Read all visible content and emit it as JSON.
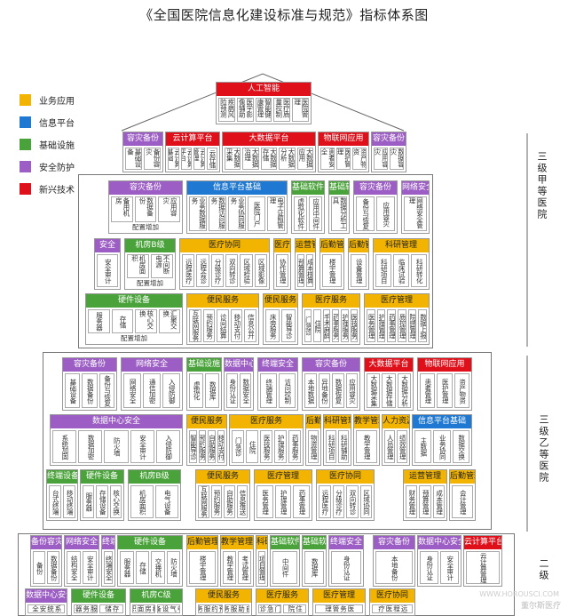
{
  "title": "《全国医院信息化建设标准与规范》指标体系图",
  "legend": [
    {
      "label": "业务应用",
      "color": "#f2b400"
    },
    {
      "label": "信息平台",
      "color": "#1f78d1"
    },
    {
      "label": "基础设施",
      "color": "#4aa33a"
    },
    {
      "label": "安全防护",
      "color": "#9c5ec4"
    },
    {
      "label": "新兴技术",
      "color": "#e0101b"
    }
  ],
  "tiers": {
    "top": "三级甲等医院",
    "mid": "三级乙等医院",
    "low": "二级"
  },
  "top": {
    "ai": {
      "header": "人工智能",
      "cells": [
        "疾病风险预测",
        "医学影像辅助",
        "智能健康管理",
        "医疗质量控制",
        "医院管理"
      ]
    },
    "row2": [
      {
        "header": "容灾备份",
        "cells": [
          "基础设备",
          "备份容灾"
        ]
      },
      {
        "header": "云计算平台",
        "cells": [
          "云计算基础",
          "云计算平台",
          "云计算管理",
          "云存储"
        ]
      },
      {
        "header": "大数据平台",
        "cells": [
          "大数据采集",
          "大数据治理",
          "大数据存储",
          "大数据分析",
          "大数据应用"
        ]
      },
      {
        "header": "物联网应用",
        "cells": [
          "患者安全",
          "医护管理",
          "资产物资"
        ]
      },
      {
        "header": "容灾备份",
        "cells": [
          "应用容灾",
          "数据容灾"
        ]
      }
    ]
  },
  "a": {
    "blocks": [
      {
        "header": "容灾备份",
        "cells": [
          "备用机房",
          "数据备份",
          "应用容灾"
        ],
        "note": "配置增加"
      },
      {
        "header": "信息平台基础",
        "cells": [
          "业务数据服务",
          "数据访问服务",
          "业务协同服务",
          "医院门户",
          "电子证照管理"
        ]
      },
      {
        "header": "基础软件",
        "cells": [
          "虚拟化软件",
          "应用中间件"
        ]
      },
      {
        "header": "基础软件",
        "cells": [
          "数据分析工具"
        ]
      },
      {
        "header": "容灾备份",
        "cells": [
          "备份与恢复",
          "应用容灾"
        ]
      },
      {
        "header": "网络安全",
        "cells": [
          "网络安全管理"
        ]
      },
      {
        "header": "安全",
        "cells": [
          "安全审计"
        ]
      },
      {
        "header": "机房B级",
        "cells": [
          "机房面积",
          "不间断电源"
        ],
        "note": "配置增加"
      },
      {
        "header": "医疗协同",
        "cells": [
          "远程医疗",
          "远程会诊",
          "分级诊疗",
          "双向转诊",
          "区域检验",
          "区域影像"
        ]
      },
      {
        "header": "医疗协同",
        "cells": [
          "协作管理"
        ]
      },
      {
        "header": "运营管理",
        "cells": [
          "预算管理",
          "成本核算"
        ]
      },
      {
        "header": "后勤管理",
        "cells": [
          "楼宇管理"
        ]
      },
      {
        "header": "后勤管理",
        "cells": [
          "设备管理"
        ]
      },
      {
        "header": "科研管理",
        "cells": [
          "科研项目",
          "临床试验",
          "科研转化"
        ]
      },
      {
        "header": "硬件设备",
        "cells": [
          "服务器",
          "存储",
          "核心交换",
          "汇聚交换"
        ],
        "note": "配置增加"
      },
      {
        "header": "便民服务",
        "cells": [
          "互联网服务",
          "预约服务",
          "诊间结算",
          "移动支付",
          "信息公开"
        ]
      },
      {
        "header": "便民服务",
        "cells": [
          "床旁服务",
          "智能导诊"
        ]
      },
      {
        "header": "医疗服务",
        "cells": [
          "门急诊",
          "住院",
          "手术麻醉",
          "药事服务",
          "护理服务",
          "医技服务"
        ]
      },
      {
        "header": "医疗管理",
        "cells": [
          "医务管理",
          "护理管理",
          "药事管理",
          "质控管理",
          "院感管理",
          "数据上报"
        ]
      }
    ]
  },
  "b": {
    "blocks": [
      {
        "header": "容灾备份",
        "cells": [
          "基础设备",
          "数据备份",
          "备份与恢复"
        ]
      },
      {
        "header": "网络安全",
        "cells": [
          "网络安全",
          "通信加密",
          "入侵防御"
        ]
      },
      {
        "header": "基础设施",
        "cells": [
          "虚拟化",
          "数据库"
        ]
      },
      {
        "header": "数据中心安全",
        "cells": [
          "身份认证",
          "数据安全"
        ]
      },
      {
        "header": "终端安全",
        "cells": [
          "终端管理",
          "访问控制"
        ]
      },
      {
        "header": "容灾备份",
        "cells": [
          "本地数据",
          "异地备份",
          "数据恢复",
          "应用容灾"
        ]
      },
      {
        "header": "大数据平台",
        "cells": [
          "大数据采集",
          "大数据存储",
          "大数据分析"
        ]
      },
      {
        "header": "物联网应用",
        "cells": [
          "患者管理",
          "医护管理",
          "资产物资"
        ]
      },
      {
        "header": "数据中心安全",
        "cells": [
          "系统加固",
          "数据加密",
          "防火墙",
          "安全审计",
          "入侵防御"
        ]
      },
      {
        "header": "便民服务",
        "cells": [
          "智能导诊",
          "预约服务",
          "自助服务",
          "移动支付"
        ]
      },
      {
        "header": "医疗服务",
        "cells": [
          "门急诊",
          "住院",
          "医技服务",
          "护理服务",
          "药事服务"
        ]
      },
      {
        "header": "后勤管理",
        "cells": [
          "物资管理"
        ]
      },
      {
        "header": "科研管理",
        "cells": [
          "科研项目",
          "科研辅助"
        ]
      },
      {
        "header": "教学管理",
        "cells": [
          "教学管理"
        ]
      },
      {
        "header": "人力资源",
        "cells": [
          "人员管理",
          "绩效管理"
        ]
      },
      {
        "header": "信息平台基础",
        "cells": [
          "主数据",
          "业务协同",
          "数据交换"
        ]
      },
      {
        "header": "终端设备",
        "cells": [
          "台式终端",
          "移动终端"
        ]
      },
      {
        "header": "硬件设备",
        "cells": [
          "服务器",
          "存储设备",
          "核心交换"
        ]
      },
      {
        "header": "机房B级",
        "cells": [
          "机房面积",
          "电气设备"
        ]
      },
      {
        "header": "便民服务",
        "cells": [
          "互联网服务",
          "预约服务",
          "自助服务",
          "信息推送"
        ]
      },
      {
        "header": "医疗管理",
        "cells": [
          "医务管理",
          "护理管理",
          "药事管理"
        ]
      },
      {
        "header": "医疗协同",
        "cells": [
          "远程医疗",
          "分级诊疗",
          "双向转诊",
          "区域协同"
        ]
      },
      {
        "header": "运营管理",
        "cells": [
          "财务管理",
          "预算管理",
          "成本管理"
        ]
      },
      {
        "header": "后勤管理",
        "cells": [
          "会计管理"
        ]
      }
    ]
  },
  "c": {
    "blocks": [
      {
        "header": "备份容灾",
        "cells": [
          "备份",
          "数据备份"
        ]
      },
      {
        "header": "网络安全",
        "cells": [
          "结构安全",
          "安全审计"
        ]
      },
      {
        "header": "终端安全",
        "cells": [
          "终端安全"
        ]
      },
      {
        "header": "硬件设备",
        "cells": [
          "服务器",
          "存储",
          "交换机",
          "防火墙"
        ]
      },
      {
        "header": "后勤管理",
        "cells": [
          "楼宇管理"
        ]
      },
      {
        "header": "教学管理",
        "cells": [
          "教学管理",
          "考试管理"
        ]
      },
      {
        "header": "科研管理",
        "cells": [
          "项目管理"
        ]
      },
      {
        "header": "基础软件",
        "cells": [
          "中间件"
        ]
      },
      {
        "header": "基础软件",
        "cells": [
          "数据库"
        ]
      },
      {
        "header": "终端安全",
        "cells": [
          "身份认证"
        ]
      },
      {
        "header": "容灾备份",
        "cells": [
          "本地备份"
        ]
      },
      {
        "header": "数据中心安全",
        "cells": [
          "身份认证",
          "安全审计"
        ]
      },
      {
        "header": "云计算平台",
        "cells": [
          "云计算管理"
        ]
      },
      {
        "header": "数据中心安全",
        "cells": [
          "系统安全"
        ]
      },
      {
        "header": "硬件设备",
        "cells": [
          "服务器",
          "存储"
        ]
      },
      {
        "header": "机房C级",
        "cells": [
          "机房面积",
          "电气设备"
        ]
      },
      {
        "header": "便民服务",
        "cells": [
          "预约服务",
          "自助服务"
        ]
      },
      {
        "header": "医疗服务",
        "cells": [
          "门急诊",
          "住院"
        ]
      },
      {
        "header": "医疗管理",
        "cells": [
          "医务管理"
        ]
      },
      {
        "header": "医疗协同",
        "cells": [
          "远程医疗"
        ]
      }
    ]
  },
  "watermark": {
    "brand": "董尔斯医疗",
    "url": "WWW.HOROUSCI.COM"
  }
}
